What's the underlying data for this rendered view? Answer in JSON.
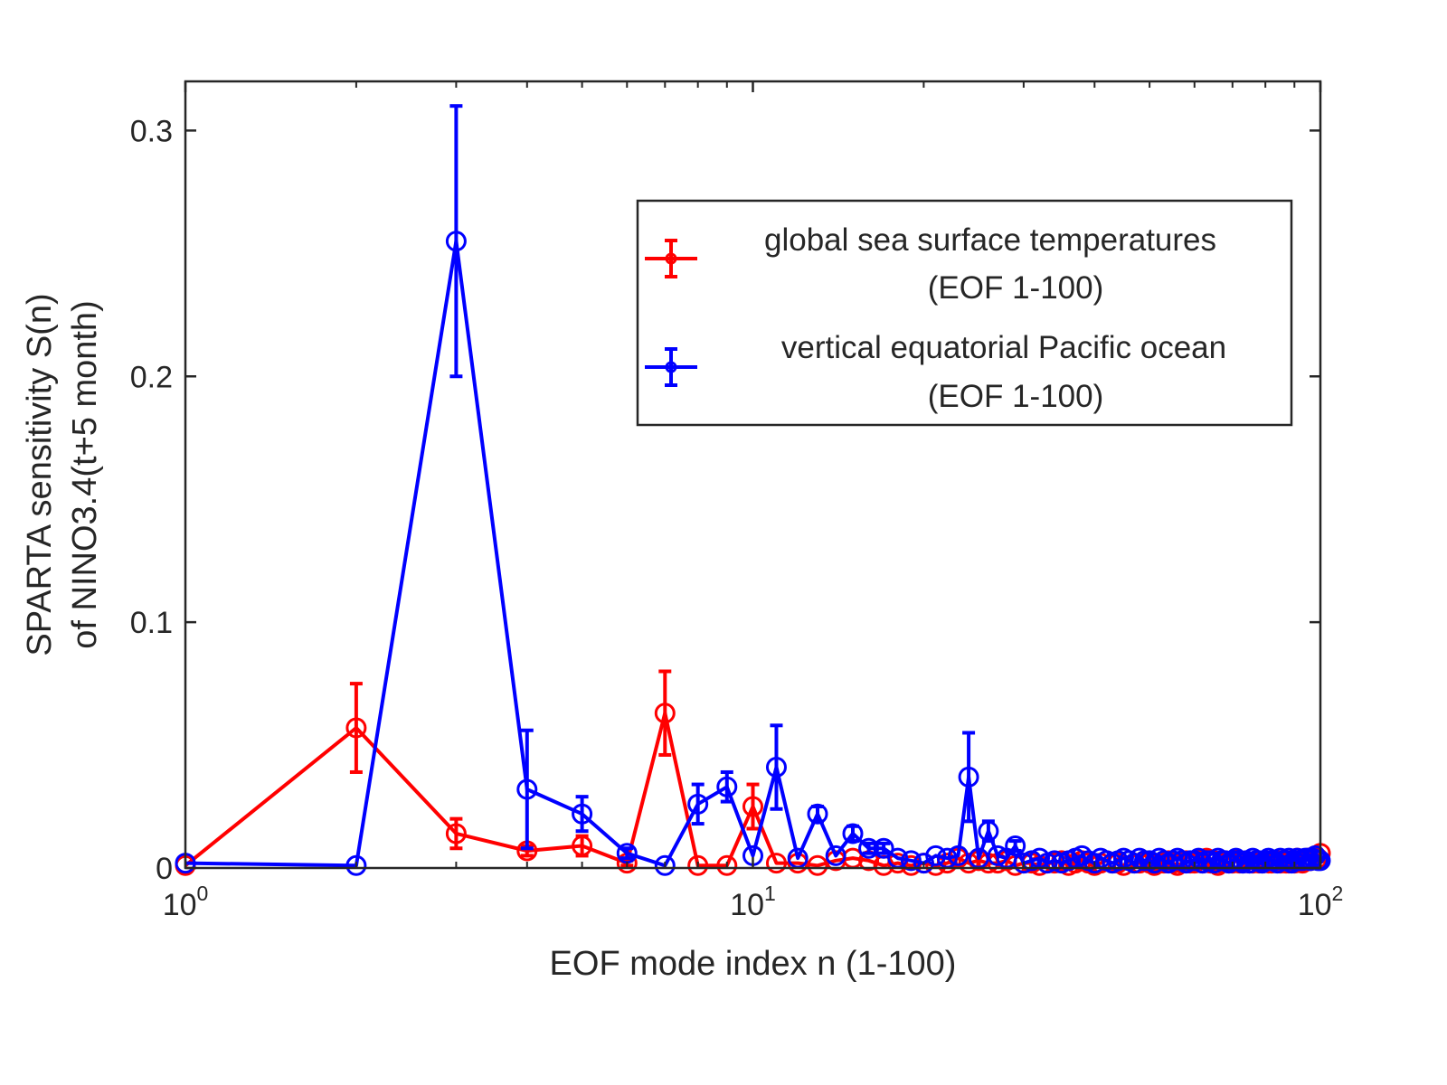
{
  "chart_data": {
    "type": "line",
    "title": "",
    "xlabel": "EOF mode index n (1-100)",
    "ylabel_lines": [
      "SPARTA sensitivity S(n)",
      "of NINO3.4(t+5 month)"
    ],
    "xscale": "log",
    "xlim": [
      1,
      100
    ],
    "ylim": [
      0,
      0.32
    ],
    "grid": false,
    "legend_position": "top-right",
    "x_ticks": [
      {
        "value": 1,
        "base": "10",
        "exp": "0"
      },
      {
        "value": 10,
        "base": "10",
        "exp": "1"
      },
      {
        "value": 100,
        "base": "10",
        "exp": "2"
      }
    ],
    "y_ticks": [
      {
        "value": 0,
        "label": "0"
      },
      {
        "value": 0.1,
        "label": "0.1"
      },
      {
        "value": 0.2,
        "label": "0.2"
      },
      {
        "value": 0.3,
        "label": "0.3"
      }
    ],
    "series": [
      {
        "name_lines": [
          "global sea surface temperatures",
          "(EOF 1-100)"
        ],
        "color": "#ff0000",
        "x": [
          1,
          2,
          3,
          4,
          5,
          6,
          7,
          8,
          9,
          10,
          11,
          12,
          13,
          14,
          15,
          16,
          17,
          18,
          19,
          20,
          21,
          22,
          23,
          24,
          25,
          26,
          27,
          28,
          29,
          30,
          31,
          32,
          33,
          34,
          35,
          36,
          37,
          38,
          39,
          40,
          41,
          42,
          43,
          44,
          45,
          46,
          47,
          48,
          49,
          50,
          51,
          52,
          53,
          54,
          55,
          56,
          57,
          58,
          59,
          60,
          61,
          62,
          63,
          64,
          65,
          66,
          67,
          68,
          69,
          70,
          71,
          72,
          73,
          74,
          75,
          76,
          77,
          78,
          79,
          80,
          81,
          82,
          83,
          84,
          85,
          86,
          87,
          88,
          89,
          90,
          91,
          92,
          93,
          94,
          95,
          96,
          97,
          98,
          99,
          100
        ],
        "y": [
          0.001,
          0.057,
          0.014,
          0.007,
          0.009,
          0.002,
          0.063,
          0.001,
          0.001,
          0.025,
          0.002,
          0.002,
          0.001,
          0.003,
          0.004,
          0.003,
          0.001,
          0.002,
          0.001,
          0.002,
          0.001,
          0.002,
          0.004,
          0.002,
          0.003,
          0.002,
          0.002,
          0.003,
          0.001,
          0.002,
          0.002,
          0.001,
          0.002,
          0.002,
          0.003,
          0.001,
          0.002,
          0.003,
          0.002,
          0.001,
          0.002,
          0.003,
          0.002,
          0.002,
          0.001,
          0.003,
          0.002,
          0.002,
          0.003,
          0.002,
          0.001,
          0.002,
          0.002,
          0.003,
          0.002,
          0.001,
          0.002,
          0.003,
          0.002,
          0.002,
          0.003,
          0.002,
          0.004,
          0.002,
          0.003,
          0.001,
          0.002,
          0.003,
          0.002,
          0.002,
          0.003,
          0.002,
          0.002,
          0.003,
          0.002,
          0.002,
          0.003,
          0.002,
          0.002,
          0.003,
          0.002,
          0.002,
          0.003,
          0.003,
          0.002,
          0.003,
          0.002,
          0.002,
          0.003,
          0.002,
          0.004,
          0.003,
          0.002,
          0.003,
          0.004,
          0.003,
          0.004,
          0.005,
          0.004,
          0.006
        ],
        "err": [
          0,
          0.018,
          0.006,
          0.002,
          0.004,
          0.001,
          0.017,
          0,
          0,
          0.009,
          0,
          0,
          0,
          0,
          0,
          0,
          0,
          0,
          0,
          0,
          0,
          0,
          0,
          0,
          0,
          0,
          0,
          0,
          0,
          0,
          0,
          0,
          0,
          0,
          0,
          0,
          0,
          0,
          0,
          0,
          0,
          0,
          0,
          0,
          0,
          0,
          0,
          0,
          0,
          0,
          0,
          0,
          0,
          0,
          0,
          0,
          0,
          0,
          0,
          0,
          0,
          0,
          0,
          0,
          0,
          0,
          0,
          0,
          0,
          0,
          0,
          0,
          0,
          0,
          0,
          0,
          0,
          0,
          0,
          0,
          0,
          0,
          0,
          0,
          0,
          0,
          0,
          0,
          0,
          0,
          0,
          0,
          0,
          0,
          0,
          0,
          0,
          0,
          0,
          0
        ]
      },
      {
        "name_lines": [
          "vertical equatorial Pacific ocean",
          "(EOF 1-100)"
        ],
        "color": "#0000ff",
        "x": [
          1,
          2,
          3,
          4,
          5,
          6,
          7,
          8,
          9,
          10,
          11,
          12,
          13,
          14,
          15,
          16,
          17,
          18,
          19,
          20,
          21,
          22,
          23,
          24,
          25,
          26,
          27,
          28,
          29,
          30,
          31,
          32,
          33,
          34,
          35,
          36,
          37,
          38,
          39,
          40,
          41,
          42,
          43,
          44,
          45,
          46,
          47,
          48,
          49,
          50,
          51,
          52,
          53,
          54,
          55,
          56,
          57,
          58,
          59,
          60,
          61,
          62,
          63,
          64,
          65,
          66,
          67,
          68,
          69,
          70,
          71,
          72,
          73,
          74,
          75,
          76,
          77,
          78,
          79,
          80,
          81,
          82,
          83,
          84,
          85,
          86,
          87,
          88,
          89,
          90,
          91,
          92,
          93,
          94,
          95,
          96,
          97,
          98,
          99,
          100
        ],
        "y": [
          0.002,
          0.001,
          0.255,
          0.032,
          0.022,
          0.006,
          0.001,
          0.026,
          0.033,
          0.005,
          0.041,
          0.004,
          0.022,
          0.005,
          0.014,
          0.008,
          0.008,
          0.004,
          0.003,
          0.002,
          0.005,
          0.004,
          0.005,
          0.037,
          0.004,
          0.015,
          0.005,
          0.004,
          0.009,
          0.002,
          0.003,
          0.004,
          0.002,
          0.003,
          0.002,
          0.003,
          0.004,
          0.005,
          0.003,
          0.002,
          0.004,
          0.003,
          0.002,
          0.003,
          0.004,
          0.003,
          0.002,
          0.004,
          0.003,
          0.003,
          0.002,
          0.004,
          0.003,
          0.002,
          0.003,
          0.004,
          0.003,
          0.002,
          0.003,
          0.003,
          0.004,
          0.002,
          0.003,
          0.003,
          0.002,
          0.004,
          0.003,
          0.003,
          0.002,
          0.003,
          0.004,
          0.003,
          0.002,
          0.003,
          0.002,
          0.004,
          0.003,
          0.003,
          0.002,
          0.003,
          0.004,
          0.003,
          0.003,
          0.002,
          0.004,
          0.003,
          0.003,
          0.004,
          0.002,
          0.003,
          0.004,
          0.003,
          0.003,
          0.004,
          0.004,
          0.003,
          0.004,
          0.005,
          0.003,
          0.003
        ],
        "err": [
          0,
          0,
          0.055,
          0.024,
          0.007,
          0.002,
          0,
          0.008,
          0.006,
          0,
          0.017,
          0,
          0.003,
          0,
          0.003,
          0.002,
          0.002,
          0,
          0,
          0,
          0,
          0,
          0,
          0.018,
          0,
          0.004,
          0,
          0,
          0.002,
          0,
          0,
          0,
          0,
          0,
          0,
          0,
          0,
          0,
          0,
          0,
          0,
          0,
          0,
          0,
          0,
          0,
          0,
          0,
          0,
          0,
          0,
          0,
          0,
          0,
          0,
          0,
          0,
          0,
          0,
          0,
          0,
          0,
          0,
          0,
          0,
          0,
          0,
          0,
          0,
          0,
          0,
          0,
          0,
          0,
          0,
          0,
          0,
          0,
          0,
          0,
          0,
          0,
          0,
          0,
          0,
          0,
          0,
          0,
          0,
          0,
          0,
          0,
          0,
          0,
          0,
          0,
          0,
          0,
          0,
          0
        ]
      }
    ]
  }
}
